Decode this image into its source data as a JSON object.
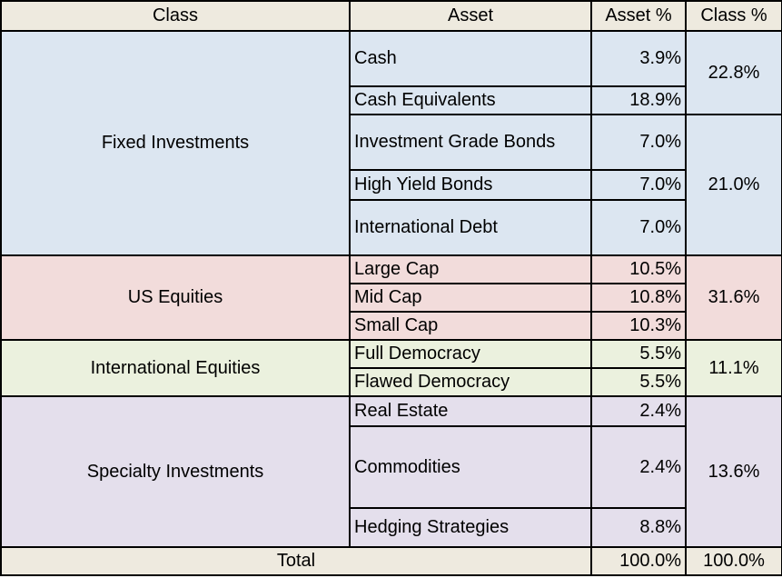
{
  "header": {
    "class": "Class",
    "asset": "Asset",
    "asset_pct": "Asset %",
    "class_pct": "Class %"
  },
  "colors": {
    "header_bg": "#eeeadf",
    "fixed_bg": "#dce6f1",
    "us_bg": "#f2dcdb",
    "intl_bg": "#ebf1de",
    "specialty_bg": "#e4dfec"
  },
  "groups": [
    {
      "name": "Fixed Investments",
      "assets": [
        {
          "name": "Cash",
          "pct": "3.9%"
        },
        {
          "name": "Cash Equivalents",
          "pct": "18.9%"
        },
        {
          "name": "Investment Grade Bonds",
          "pct": "7.0%"
        },
        {
          "name": "High Yield Bonds",
          "pct": "7.0%"
        },
        {
          "name": "International Debt",
          "pct": "7.0%"
        }
      ],
      "class_pcts": [
        "22.8%",
        "21.0%"
      ]
    },
    {
      "name": "US Equities",
      "assets": [
        {
          "name": "Large Cap",
          "pct": "10.5%"
        },
        {
          "name": "Mid Cap",
          "pct": "10.8%"
        },
        {
          "name": "Small Cap",
          "pct": "10.3%"
        }
      ],
      "class_pct": "31.6%"
    },
    {
      "name": "International Equities",
      "assets": [
        {
          "name": "Full Democracy",
          "pct": "5.5%"
        },
        {
          "name": "Flawed Democracy",
          "pct": "5.5%"
        }
      ],
      "class_pct": "11.1%"
    },
    {
      "name": "Specialty Investments",
      "assets": [
        {
          "name": "Real Estate",
          "pct": "2.4%"
        },
        {
          "name": "Commodities",
          "pct": "2.4%"
        },
        {
          "name": "Hedging Strategies",
          "pct": "8.8%"
        }
      ],
      "class_pct": "13.6%"
    }
  ],
  "total": {
    "label": "Total",
    "asset_pct": "100.0%",
    "class_pct": "100.0%"
  }
}
